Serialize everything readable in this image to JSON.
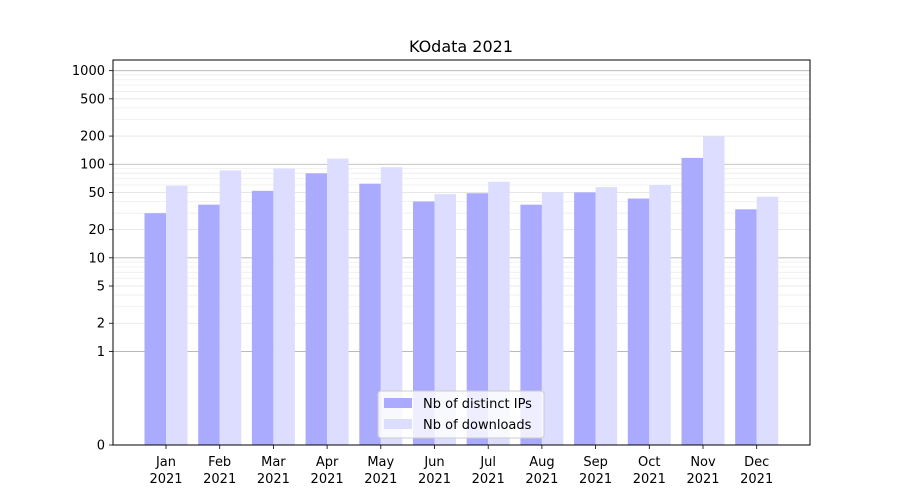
{
  "chart_data": {
    "type": "bar",
    "title": "KOdata 2021",
    "xlabel": "",
    "ylabel": "",
    "yscale": "symlog",
    "ylim": [
      0,
      1300
    ],
    "yticks": [
      0,
      1,
      2,
      5,
      10,
      20,
      50,
      100,
      200,
      500,
      1000
    ],
    "grid": "horizontal",
    "legend_position": "bottom-center",
    "categories": [
      [
        "Jan",
        "2021"
      ],
      [
        "Feb",
        "2021"
      ],
      [
        "Mar",
        "2021"
      ],
      [
        "Apr",
        "2021"
      ],
      [
        "May",
        "2021"
      ],
      [
        "Jun",
        "2021"
      ],
      [
        "Jul",
        "2021"
      ],
      [
        "Aug",
        "2021"
      ],
      [
        "Sep",
        "2021"
      ],
      [
        "Oct",
        "2021"
      ],
      [
        "Nov",
        "2021"
      ],
      [
        "Dec",
        "2021"
      ]
    ],
    "series": [
      {
        "name": "Nb of distinct IPs",
        "color": "#aaaaff",
        "values": [
          30,
          37,
          52,
          80,
          62,
          40,
          49,
          37,
          50,
          43,
          117,
          33
        ]
      },
      {
        "name": "Nb of downloads",
        "color": "#ddddff",
        "values": [
          59,
          86,
          90,
          115,
          93,
          48,
          65,
          50,
          57,
          60,
          198,
          45
        ]
      }
    ]
  }
}
